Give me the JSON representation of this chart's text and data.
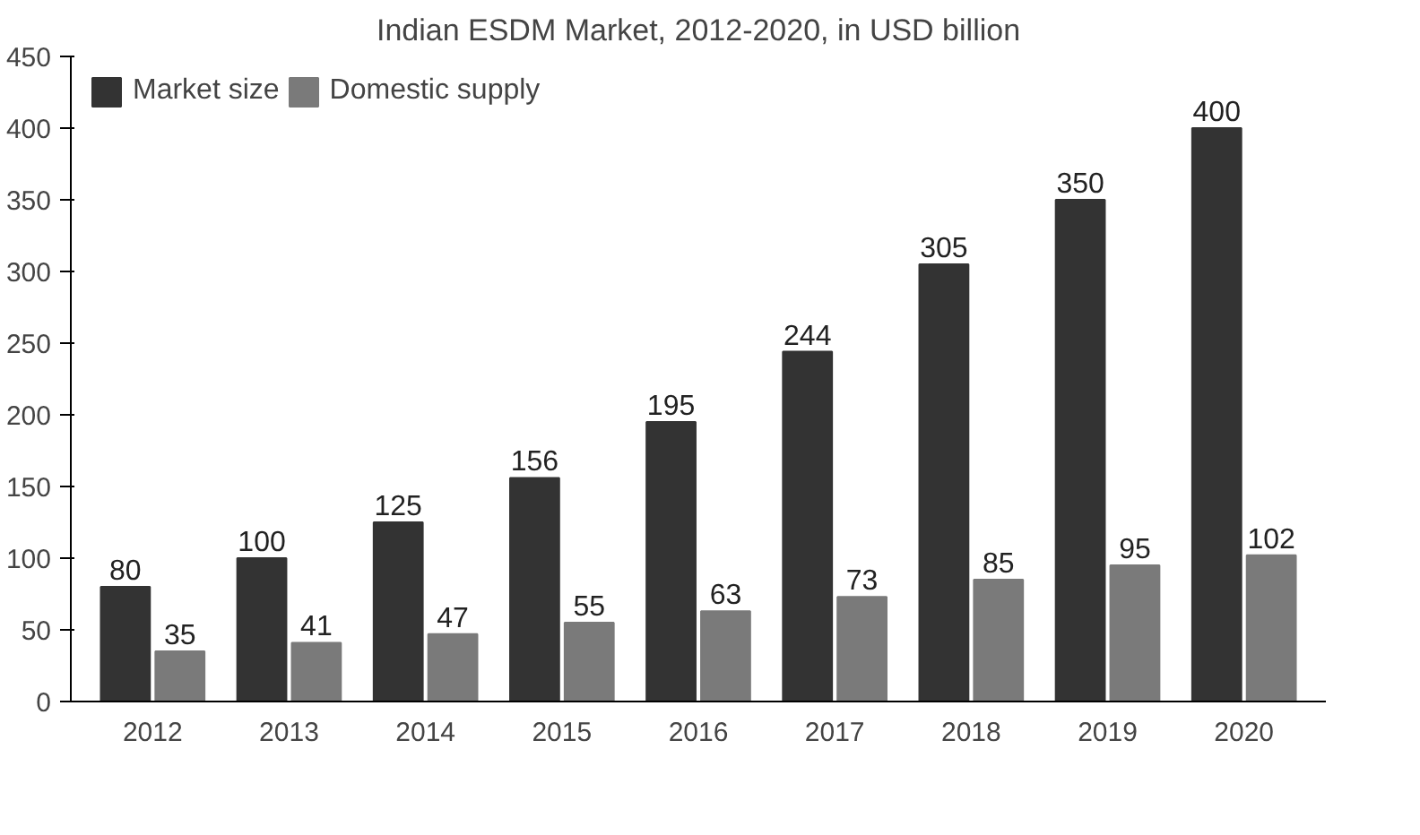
{
  "chart_data": {
    "type": "bar",
    "title": "Indian ESDM Market, 2012-2020, in USD billion",
    "categories": [
      "2012",
      "2013",
      "2014",
      "2015",
      "2016",
      "2017",
      "2018",
      "2019",
      "2020"
    ],
    "series": [
      {
        "name": "Market size",
        "color": "#333333",
        "values": [
          80,
          100,
          125,
          156,
          195,
          244,
          305,
          350,
          400
        ]
      },
      {
        "name": "Domestic supply",
        "color": "#7a7a7a",
        "values": [
          35,
          41,
          47,
          55,
          63,
          73,
          85,
          95,
          102
        ]
      }
    ],
    "ylim": [
      0,
      450
    ],
    "yticks": [
      0,
      50,
      100,
      150,
      200,
      250,
      300,
      350,
      400,
      450
    ],
    "data_labels": true,
    "grid": false,
    "legend": "top left"
  }
}
